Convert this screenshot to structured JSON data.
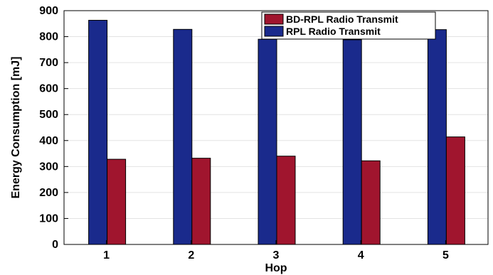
{
  "chart_data": {
    "type": "bar",
    "title": "",
    "xlabel": "Hop",
    "ylabel": "Energy Consumption [mJ]",
    "categories": [
      "1",
      "2",
      "3",
      "4",
      "5"
    ],
    "yticks": [
      "0",
      "100",
      "200",
      "300",
      "400",
      "500",
      "600",
      "700",
      "800",
      "900"
    ],
    "ylim": [
      0,
      900
    ],
    "grid": true,
    "legend_position": "top-right",
    "series": [
      {
        "name": "RPL Radio Transmit",
        "color": "#1a2a8c",
        "values": [
          863,
          828,
          790,
          788,
          827
        ]
      },
      {
        "name": "BD-RPL Radio Transmit",
        "color": "#a0152e",
        "values": [
          328,
          332,
          340,
          322,
          414
        ]
      }
    ],
    "legend_order": [
      1,
      0
    ]
  }
}
